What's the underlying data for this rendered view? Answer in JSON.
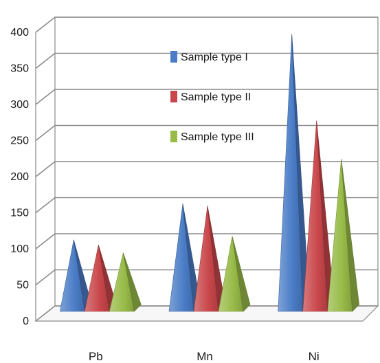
{
  "chart_data": {
    "type": "bar",
    "style": "3d-pyramid",
    "categories": [
      "Pb",
      "Mn",
      "Ni"
    ],
    "series": [
      {
        "name": "Sample type I",
        "values": [
          100,
          150,
          385
        ],
        "color": "#4a7cc6"
      },
      {
        "name": "Sample type II",
        "values": [
          93,
          147,
          265
        ],
        "color": "#c9474b"
      },
      {
        "name": "Sample type III",
        "values": [
          82,
          105,
          212
        ],
        "color": "#98bb48"
      }
    ],
    "ylim": [
      0,
      400
    ],
    "yticks": [
      0,
      50,
      100,
      150,
      200,
      250,
      300,
      350,
      400
    ],
    "ytick_labels": [
      "0",
      "50",
      "100",
      "150",
      "200",
      "250",
      "300",
      "350",
      "400"
    ],
    "grid": true,
    "legend_position": "inside-top-center",
    "title": "",
    "xlabel": "",
    "ylabel": ""
  }
}
